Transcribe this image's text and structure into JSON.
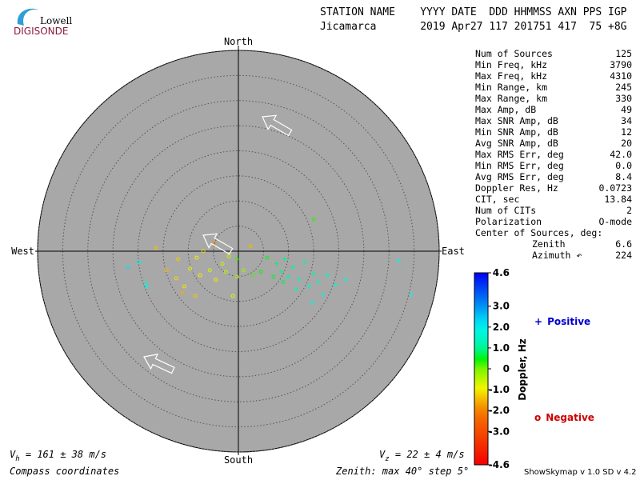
{
  "logo": {
    "top": "Lowell",
    "bottom": "DIGISONDE"
  },
  "header": {
    "columns": "STATION NAME    YYYY DATE  DDD HHMMSS AXN PPS IGP",
    "values": "Jicamarca       2019 Apr27 117 201751 417  75 +8G"
  },
  "stats": [
    {
      "label": "Num of Sources",
      "value": "125"
    },
    {
      "label": "Min Freq, kHz",
      "value": "3790"
    },
    {
      "label": "Max Freq, kHz",
      "value": "4310"
    },
    {
      "label": "Min Range, km",
      "value": "245"
    },
    {
      "label": "Max Range, km",
      "value": "330"
    },
    {
      "label": "Max Amp, dB",
      "value": "49"
    },
    {
      "label": "Max SNR Amp, dB",
      "value": "34"
    },
    {
      "label": "Min SNR Amp, dB",
      "value": "12"
    },
    {
      "label": "Avg SNR Amp, dB",
      "value": "20"
    },
    {
      "label": "Max RMS Err, deg",
      "value": "42.0"
    },
    {
      "label": "Min RMS Err, deg",
      "value": "0.0"
    },
    {
      "label": "Avg RMS Err, deg",
      "value": "8.4"
    },
    {
      "label": "Doppler Res, Hz",
      "value": "0.0723"
    },
    {
      "label": "CIT, sec",
      "value": "13.84"
    },
    {
      "label": "Num of CITs",
      "value": "2"
    },
    {
      "label": "Polarization",
      "value": "O-mode"
    }
  ],
  "center": {
    "title": "Center of Sources, deg:",
    "zenith_label": "Zenith",
    "zenith": "6.6",
    "azimuth_label": "Azimuth ↶",
    "azimuth": "224"
  },
  "footer": {
    "vh": {
      "symbol": "V",
      "subscript": "h",
      "text": " = 161 ± 38 m/s"
    },
    "vz": {
      "symbol": "V",
      "subscript": "z",
      "text": " = 22 ± 4 m/s"
    },
    "coords": "Compass coordinates",
    "zenith": "Zenith: max 40°  step 5°",
    "version": "ShowSkymap v 1.0  SD v 4.2"
  },
  "chart_data": {
    "type": "skymap",
    "directions": {
      "north": "North",
      "south": "South",
      "east": "East",
      "west": "West"
    },
    "rlim": [
      0,
      40
    ],
    "rticks": [
      5,
      10,
      15,
      20,
      25,
      30,
      35,
      40
    ],
    "colorbar": {
      "label": "Doppler, Hz",
      "lim": [
        -4.6,
        4.6
      ],
      "ticks": [
        4.6,
        {
          "value": 3,
          "label": "3.0"
        },
        {
          "value": 2,
          "label": "2.0"
        },
        {
          "value": 1,
          "label": "1.0"
        },
        0,
        {
          "value": -1,
          "label": "-1.0"
        },
        {
          "value": -2,
          "label": "-2.0"
        },
        {
          "value": -3,
          "label": "-3.0"
        },
        -4.6
      ]
    },
    "series": [
      {
        "name": "Positive",
        "marker": "+",
        "color": "#0000cc",
        "x": [
          -22.0,
          -18.2,
          8.6,
          9.9,
          10.8,
          12.1,
          13.1,
          14.0,
          15.0,
          15.9,
          16.9,
          14.7,
          17.8,
          19.4,
          21.4,
          31.9,
          34.4,
          7.6,
          9.2,
          -0.3,
          11.5
        ],
        "y": [
          -3.2,
          -7.0,
          -4.1,
          -5.1,
          -3.2,
          -5.7,
          -2.2,
          -7.0,
          -4.5,
          -6.1,
          -8.6,
          -10.2,
          -4.8,
          -6.7,
          -5.7,
          -1.9,
          -8.6,
          -2.5,
          -1.6,
          -1.6,
          -7.6
        ],
        "doppler": [
          2.2,
          1.8,
          0.9,
          1.1,
          1.0,
          1.3,
          1.1,
          1.5,
          1.2,
          1.4,
          1.6,
          1.7,
          1.4,
          1.6,
          1.8,
          2.0,
          1.9,
          0.8,
          0.9,
          0.2,
          1.2
        ]
      },
      {
        "name": "Negative",
        "marker": "o",
        "color": "#cc0000",
        "x": [
          -4.8,
          2.4,
          -7.0,
          -12.0,
          -16.4,
          -14.3,
          -12.4,
          -10.8,
          -8.6,
          -11.2,
          -9.6,
          -7.6,
          -5.7,
          -4.5,
          -3.2,
          -2.5,
          -1.1,
          -0.3,
          1.0,
          2.9,
          4.5,
          5.7,
          15.0,
          7.0,
          8.9,
          -18.5,
          -19.8,
          -1.9,
          -8.3
        ],
        "y": [
          1.6,
          1.0,
          0,
          -1.6,
          0.6,
          -3.8,
          -5.4,
          -7.0,
          -8.9,
          -8.3,
          -3.5,
          -4.8,
          -3.8,
          -5.7,
          -2.5,
          -4.1,
          -8.9,
          -5.1,
          -3.8,
          -4.8,
          -4.1,
          -1.3,
          6.4,
          -5.1,
          -6.1,
          -6.4,
          -2.2,
          -1.0,
          -1.3
        ],
        "doppler": [
          -1.8,
          -1.5,
          -1.2,
          -1.3,
          -1.4,
          -1.5,
          -1.2,
          -1.1,
          -1.3,
          -1.6,
          -0.8,
          -0.9,
          -0.7,
          -0.9,
          -0.6,
          -0.5,
          -0.8,
          -0.4,
          -0.3,
          0.2,
          0.4,
          0.5,
          0.3,
          0.6,
          0.7,
          1.5,
          1.8,
          -0.6,
          -1.0
        ]
      }
    ]
  }
}
